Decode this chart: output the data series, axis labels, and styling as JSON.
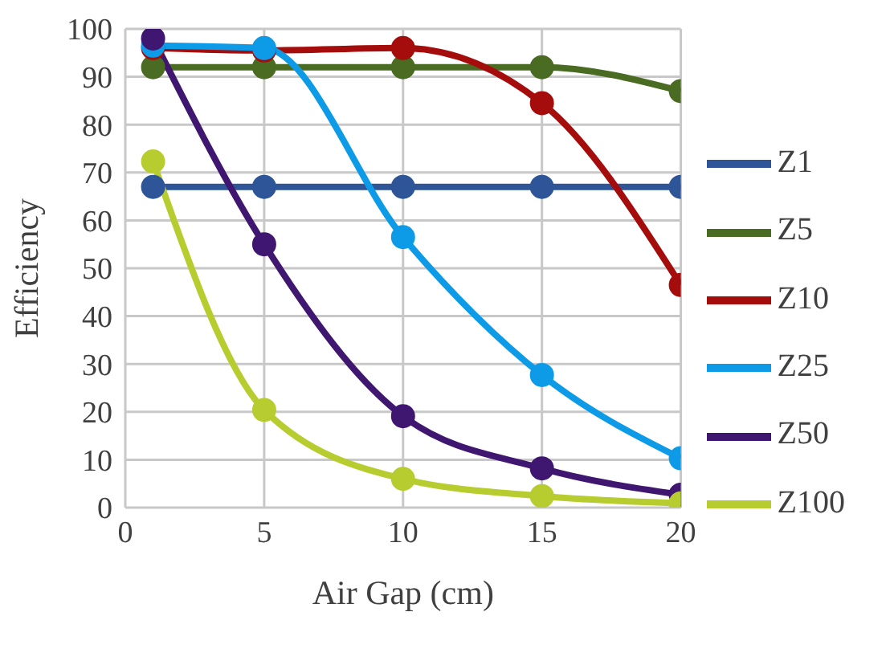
{
  "chart_data": {
    "type": "line",
    "xlabel": "Air Gap (cm)",
    "ylabel": "Efficiency",
    "x": [
      1,
      5,
      10,
      15,
      20
    ],
    "xlim": [
      0,
      20
    ],
    "xticks": [
      0,
      5,
      10,
      15,
      20
    ],
    "ylim": [
      0,
      100
    ],
    "yticks": [
      0,
      10,
      20,
      30,
      40,
      50,
      60,
      70,
      80,
      90,
      100
    ],
    "grid": true,
    "legend": "right",
    "marker": "circle",
    "line_style": "solid",
    "series": [
      {
        "name": "Z1",
        "color": "#2e5597",
        "values": [
          67,
          67,
          67,
          67,
          67
        ]
      },
      {
        "name": "Z5",
        "color": "#4a6b22",
        "values": [
          92,
          92,
          92,
          92,
          87
        ]
      },
      {
        "name": "Z10",
        "color": "#a50d0d",
        "values": [
          96,
          95.5,
          96,
          84.5,
          46.5
        ]
      },
      {
        "name": "Z25",
        "color": "#0d9be8",
        "values": [
          96.5,
          96,
          56.5,
          27.7,
          10.3
        ]
      },
      {
        "name": "Z50",
        "color": "#3f1670",
        "values": [
          98,
          55,
          19.1,
          8.2,
          2.7
        ]
      },
      {
        "name": "Z100",
        "color": "#b7cc2e",
        "values": [
          72.3,
          20.4,
          6,
          2.4,
          0.9
        ]
      }
    ]
  }
}
